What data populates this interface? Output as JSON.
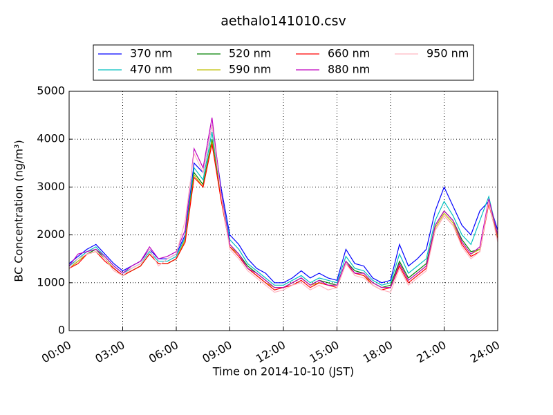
{
  "chart_data": {
    "type": "line",
    "title": "aethalo141010.csv",
    "x_label": "Time on 2014-10-10 (JST)",
    "y_label": "BC Concentration (ng/m³)",
    "x": [
      0,
      0.5,
      1,
      1.5,
      2,
      2.5,
      3,
      3.5,
      4,
      4.5,
      5,
      5.5,
      6,
      6.5,
      7,
      7.5,
      8,
      8.5,
      9,
      9.5,
      10,
      10.5,
      11,
      11.5,
      12,
      12.5,
      13,
      13.5,
      14,
      14.5,
      15,
      15.5,
      16,
      16.5,
      17,
      17.5,
      18,
      18.5,
      19,
      19.5,
      20,
      20.5,
      21,
      21.5,
      22,
      22.5,
      23,
      23.5,
      24
    ],
    "series": [
      {
        "name": "370 nm",
        "color": "#0000ff",
        "values": [
          1400,
          1550,
          1700,
          1800,
          1600,
          1400,
          1250,
          1350,
          1450,
          1700,
          1500,
          1500,
          1600,
          2000,
          3500,
          3300,
          4300,
          3000,
          2000,
          1800,
          1500,
          1300,
          1200,
          1000,
          1000,
          1100,
          1250,
          1100,
          1200,
          1100,
          1050,
          1700,
          1400,
          1350,
          1100,
          1000,
          1050,
          1800,
          1350,
          1500,
          1700,
          2500,
          3000,
          2600,
          2200,
          2000,
          2500,
          2700,
          2100
        ]
      },
      {
        "name": "470 nm",
        "color": "#00bfbf",
        "values": [
          1350,
          1500,
          1650,
          1750,
          1550,
          1350,
          1200,
          1300,
          1400,
          1650,
          1450,
          1450,
          1550,
          1950,
          3400,
          3150,
          4150,
          2900,
          1900,
          1700,
          1400,
          1250,
          1100,
          950,
          950,
          1050,
          1150,
          1000,
          1100,
          1050,
          1000,
          1550,
          1300,
          1250,
          1050,
          950,
          1000,
          1600,
          1200,
          1350,
          1500,
          2300,
          2700,
          2400,
          2000,
          1800,
          2300,
          2800,
          2000
        ]
      },
      {
        "name": "520 nm",
        "color": "#008000",
        "values": [
          1300,
          1450,
          1600,
          1700,
          1500,
          1300,
          1150,
          1250,
          1350,
          1600,
          1400,
          1400,
          1500,
          1900,
          3300,
          3050,
          4000,
          2800,
          1800,
          1600,
          1350,
          1200,
          1050,
          900,
          900,
          1000,
          1100,
          950,
          1050,
          1000,
          950,
          1450,
          1250,
          1200,
          1000,
          900,
          950,
          1450,
          1100,
          1250,
          1400,
          2200,
          2500,
          2300,
          1900,
          1650,
          1700,
          2700,
          1950
        ]
      },
      {
        "name": "590 nm",
        "color": "#bfbf00",
        "values": [
          1300,
          1450,
          1600,
          1650,
          1500,
          1300,
          1150,
          1250,
          1350,
          1600,
          1400,
          1400,
          1500,
          1900,
          3250,
          3000,
          3950,
          2750,
          1750,
          1600,
          1300,
          1150,
          1000,
          900,
          900,
          1000,
          1100,
          950,
          1000,
          950,
          950,
          1400,
          1200,
          1150,
          1000,
          900,
          900,
          1400,
          1050,
          1200,
          1350,
          2150,
          2450,
          2250,
          1850,
          1600,
          1700,
          2650,
          1950
        ]
      },
      {
        "name": "660 nm",
        "color": "#ff0000",
        "values": [
          1300,
          1400,
          1600,
          1650,
          1450,
          1300,
          1150,
          1250,
          1350,
          1600,
          1400,
          1400,
          1500,
          1850,
          3200,
          3000,
          3900,
          2750,
          1750,
          1550,
          1300,
          1150,
          1000,
          850,
          900,
          950,
          1050,
          900,
          1000,
          950,
          900,
          1400,
          1200,
          1150,
          950,
          850,
          900,
          1350,
          1000,
          1150,
          1300,
          2100,
          2400,
          2200,
          1800,
          1550,
          1650,
          2650,
          1900
        ]
      },
      {
        "name": "880 nm",
        "color": "#bf00bf",
        "values": [
          1350,
          1600,
          1650,
          1700,
          1550,
          1350,
          1200,
          1350,
          1450,
          1750,
          1500,
          1550,
          1650,
          2100,
          3800,
          3400,
          4450,
          2900,
          1800,
          1600,
          1300,
          1200,
          1050,
          900,
          900,
          1000,
          1100,
          950,
          1050,
          950,
          950,
          1450,
          1200,
          1200,
          1000,
          900,
          900,
          1400,
          1050,
          1200,
          1350,
          2200,
          2500,
          2300,
          1850,
          1600,
          1750,
          2750,
          2000
        ]
      },
      {
        "name": "950 nm",
        "color": "#ffb6c1",
        "values": [
          1300,
          1500,
          1600,
          1650,
          1500,
          1250,
          1150,
          1300,
          1400,
          1700,
          1350,
          1500,
          1600,
          2300,
          3700,
          3300,
          4300,
          2850,
          1700,
          1500,
          1250,
          1100,
          950,
          800,
          850,
          950,
          1000,
          850,
          950,
          850,
          900,
          1400,
          1150,
          1100,
          950,
          850,
          800,
          1300,
          950,
          1100,
          1250,
          2100,
          2400,
          2200,
          1750,
          1500,
          1650,
          2700,
          1850
        ]
      }
    ],
    "xlim": [
      0,
      24
    ],
    "xticks": [
      {
        "value": 0,
        "label": "00:00"
      },
      {
        "value": 3,
        "label": "03:00"
      },
      {
        "value": 6,
        "label": "06:00"
      },
      {
        "value": 9,
        "label": "09:00"
      },
      {
        "value": 12,
        "label": "12:00"
      },
      {
        "value": 15,
        "label": "15:00"
      },
      {
        "value": 18,
        "label": "18:00"
      },
      {
        "value": 21,
        "label": "21:00"
      },
      {
        "value": 24,
        "label": "24:00"
      }
    ],
    "ylim": [
      0,
      5000
    ],
    "yticks": [
      0,
      1000,
      2000,
      3000,
      4000,
      5000
    ],
    "grid": true,
    "legend": "top"
  }
}
